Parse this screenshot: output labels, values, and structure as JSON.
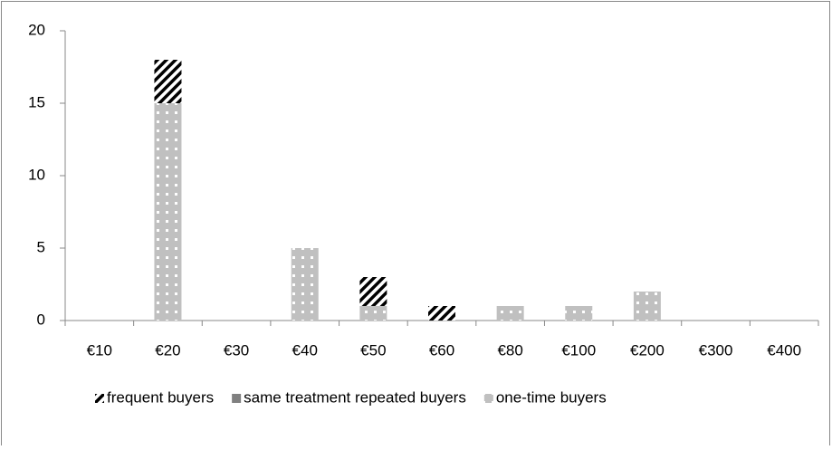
{
  "chart_data": {
    "type": "stacked_bar",
    "categories": [
      "€10",
      "€20",
      "€30",
      "€40",
      "€50",
      "€60",
      "€80",
      "€100",
      "€200",
      "€300",
      "€400"
    ],
    "series": [
      {
        "name": "one-time buyers",
        "color": "#c0c0c0",
        "pattern": "dots",
        "values": [
          0,
          15,
          0,
          5,
          1,
          0,
          1,
          1,
          2,
          0,
          0
        ]
      },
      {
        "name": "same treatment repeated buyers",
        "color": "#808080",
        "pattern": "solid",
        "values": [
          0,
          0,
          0,
          0,
          0,
          0,
          0,
          0,
          0,
          0,
          0
        ]
      },
      {
        "name": "frequent buyers",
        "color": "#000000",
        "pattern": "hatch",
        "values": [
          0,
          3,
          0,
          0,
          2,
          1,
          0,
          0,
          0,
          0,
          0
        ]
      }
    ],
    "legend_order": [
      2,
      1,
      0
    ],
    "legend_position": "bottom",
    "ylim": [
      0,
      20
    ],
    "yticks": [
      0,
      5,
      10,
      15,
      20
    ],
    "grid": false
  }
}
